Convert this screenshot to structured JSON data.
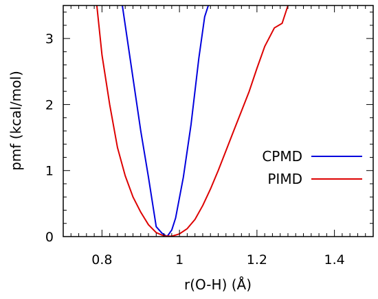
{
  "chart_data": {
    "type": "line",
    "title": "",
    "xlabel": "r(O-H) (Å)",
    "ylabel": "pmf (kcal/mol)",
    "xlim": [
      0.7,
      1.5
    ],
    "ylim": [
      0,
      3.5
    ],
    "x_ticks": [
      {
        "value": 0.8,
        "label": "0.8"
      },
      {
        "value": 1.0,
        "label": "1"
      },
      {
        "value": 1.2,
        "label": "1.2"
      },
      {
        "value": 1.4,
        "label": "1.4"
      }
    ],
    "y_ticks": [
      {
        "value": 0,
        "label": "0"
      },
      {
        "value": 1,
        "label": "1"
      },
      {
        "value": 2,
        "label": "2"
      },
      {
        "value": 3,
        "label": "3"
      }
    ],
    "grid": false,
    "legend_position": "right",
    "series": [
      {
        "name": "CPMD",
        "color": "#0000dd",
        "points": [
          [
            0.85,
            3.6
          ],
          [
            0.875,
            2.6
          ],
          [
            0.9,
            1.6
          ],
          [
            0.92,
            0.9
          ],
          [
            0.94,
            0.15
          ],
          [
            0.955,
            0.05
          ],
          [
            0.968,
            0.0
          ],
          [
            0.98,
            0.1
          ],
          [
            0.99,
            0.28
          ],
          [
            1.01,
            0.9
          ],
          [
            1.03,
            1.7
          ],
          [
            1.05,
            2.7
          ],
          [
            1.065,
            3.33
          ],
          [
            1.08,
            3.6
          ]
        ]
      },
      {
        "name": "PIMD",
        "color": "#dd0000",
        "points": [
          [
            0.785,
            3.6
          ],
          [
            0.8,
            2.75
          ],
          [
            0.82,
            2.0
          ],
          [
            0.84,
            1.35
          ],
          [
            0.86,
            0.92
          ],
          [
            0.88,
            0.6
          ],
          [
            0.9,
            0.37
          ],
          [
            0.92,
            0.18
          ],
          [
            0.94,
            0.06
          ],
          [
            0.96,
            0.01
          ],
          [
            0.98,
            0.005
          ],
          [
            1.0,
            0.04
          ],
          [
            1.02,
            0.12
          ],
          [
            1.04,
            0.26
          ],
          [
            1.06,
            0.47
          ],
          [
            1.08,
            0.72
          ],
          [
            1.1,
            1.0
          ],
          [
            1.12,
            1.3
          ],
          [
            1.14,
            1.6
          ],
          [
            1.16,
            1.9
          ],
          [
            1.18,
            2.2
          ],
          [
            1.2,
            2.55
          ],
          [
            1.22,
            2.88
          ],
          [
            1.245,
            3.16
          ],
          [
            1.265,
            3.23
          ],
          [
            1.28,
            3.5
          ],
          [
            1.29,
            3.6
          ]
        ]
      }
    ]
  }
}
